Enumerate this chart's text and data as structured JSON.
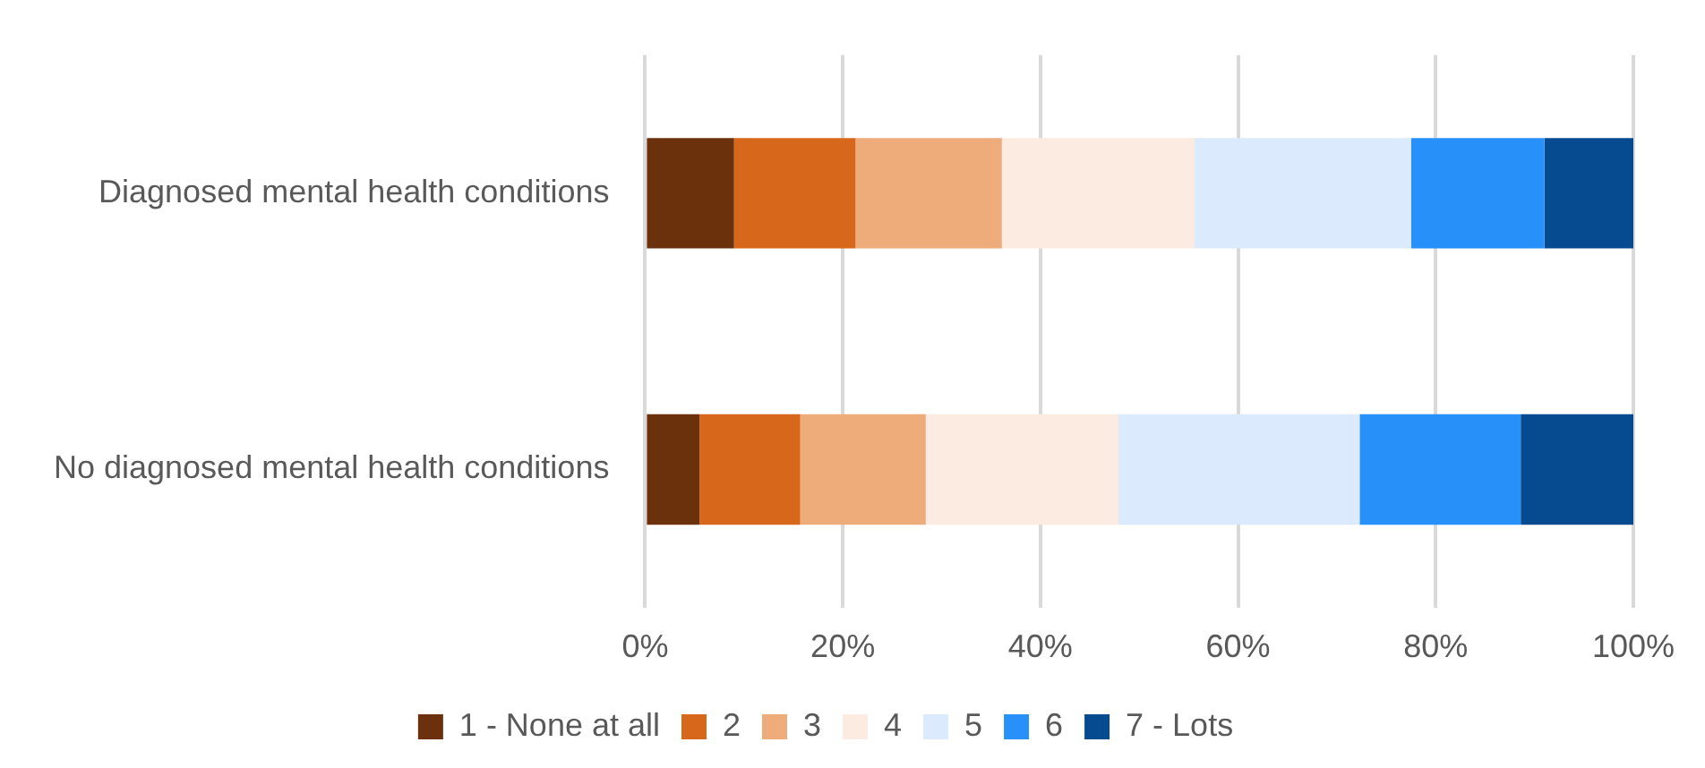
{
  "chart_data": {
    "type": "bar",
    "orientation": "horizontal",
    "stacked": true,
    "categories": [
      "Diagnosed mental health conditions",
      "No diagnosed mental health conditions"
    ],
    "series": [
      {
        "name": "1 - None at all",
        "color": "#6b300c",
        "values": [
          9.0,
          5.5
        ]
      },
      {
        "name": "2",
        "color": "#d7671a",
        "values": [
          12.3,
          10.2
        ]
      },
      {
        "name": "3",
        "color": "#eeac7a",
        "values": [
          14.8,
          12.7
        ]
      },
      {
        "name": "4",
        "color": "#fcebe0",
        "values": [
          19.5,
          19.5
        ]
      },
      {
        "name": "5",
        "color": "#dbeafc",
        "values": [
          21.9,
          24.4
        ]
      },
      {
        "name": "6",
        "color": "#2891f9",
        "values": [
          13.5,
          16.3
        ]
      },
      {
        "name": "7 - Lots",
        "color": "#064b90",
        "values": [
          9.0,
          11.4
        ]
      }
    ],
    "xlim": [
      0,
      100
    ],
    "xticks": [
      {
        "value": 0,
        "label": "0%"
      },
      {
        "value": 20,
        "label": "20%"
      },
      {
        "value": 40,
        "label": "40%"
      },
      {
        "value": 60,
        "label": "60%"
      },
      {
        "value": 80,
        "label": "80%"
      },
      {
        "value": 100,
        "label": "100%"
      }
    ],
    "grid": "x",
    "legend": "bottom"
  }
}
